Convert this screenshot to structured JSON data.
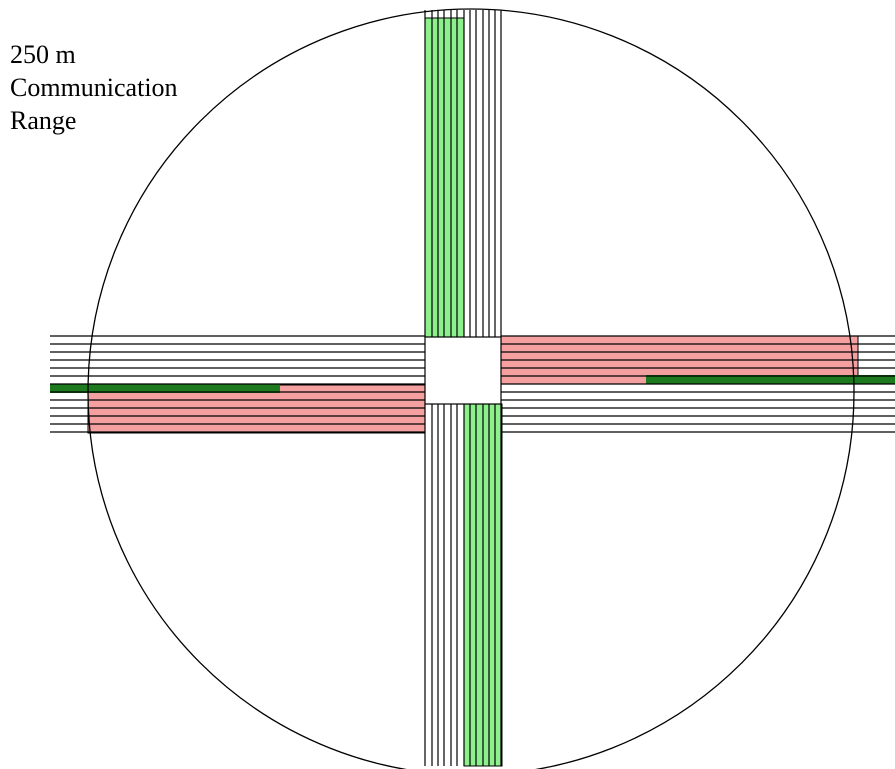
{
  "label": {
    "distance": "250 m",
    "line2": "Communication",
    "line3": "Range"
  },
  "colors": {
    "stroke": "#000000",
    "green_zone": "#8df08d",
    "red_zone": "#f5a0a0",
    "dark_green_bar": "#1e7a1e",
    "background": "#ffffff"
  }
}
